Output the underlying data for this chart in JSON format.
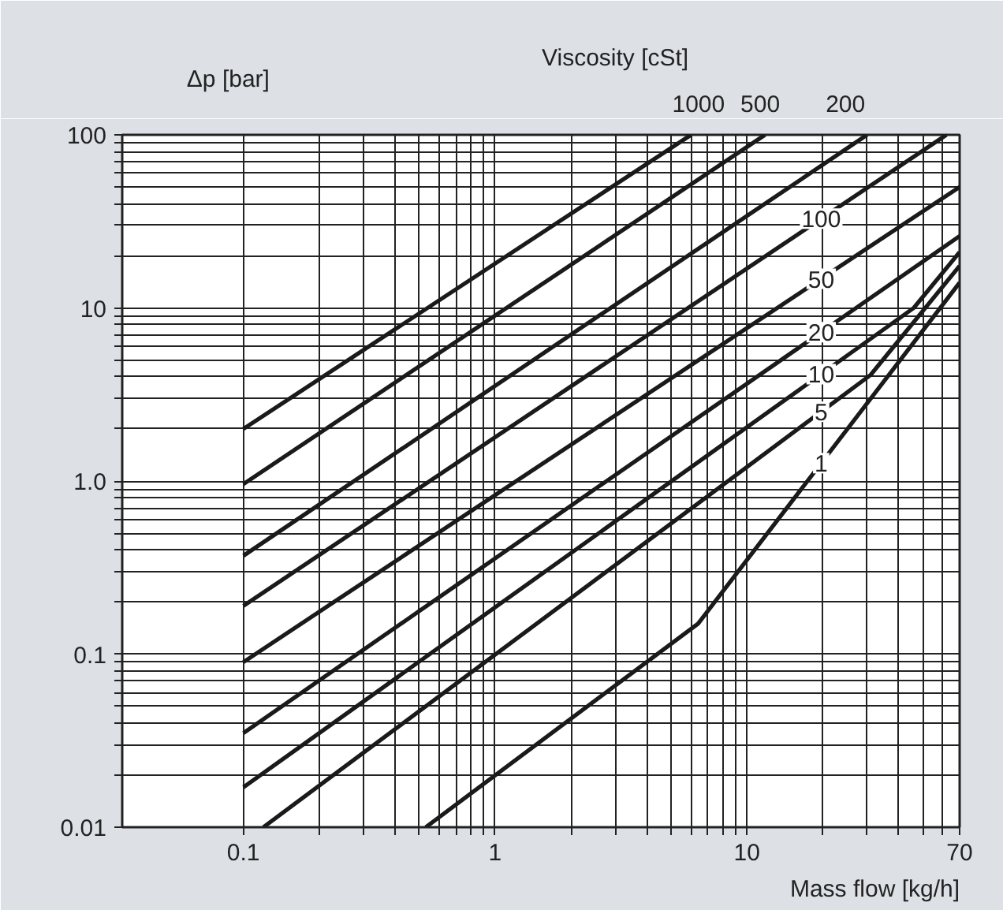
{
  "chart_data": {
    "type": "line",
    "legend_title": "Viscosity [cSt]",
    "xlabel": "Mass flow [kg/h]",
    "ylabel": "Δp [bar]",
    "log": "xy",
    "grid": true,
    "xlim": [
      0.033,
      70
    ],
    "ylim": [
      0.01,
      100
    ],
    "xticks": [
      0.1,
      {
        "value": 0.2,
        "label": null
      },
      {
        "value": 0.3,
        "label": null
      },
      {
        "value": 0.4,
        "label": null
      },
      {
        "value": 0.5,
        "label": null
      },
      {
        "value": 0.6,
        "label": null
      },
      {
        "value": 0.7,
        "label": null
      },
      {
        "value": 0.8,
        "label": null
      },
      {
        "value": 0.9,
        "label": null
      },
      1,
      {
        "value": 2,
        "label": null
      },
      {
        "value": 3,
        "label": null
      },
      {
        "value": 4,
        "label": null
      },
      {
        "value": 5,
        "label": null
      },
      {
        "value": 6,
        "label": null
      },
      {
        "value": 7,
        "label": null
      },
      {
        "value": 8,
        "label": null
      },
      {
        "value": 9,
        "label": null
      },
      10,
      {
        "value": 20,
        "label": null
      },
      {
        "value": 30,
        "label": null
      },
      {
        "value": 40,
        "label": null
      },
      {
        "value": 50,
        "label": null
      },
      {
        "value": 60,
        "label": null
      },
      70
    ],
    "yticks": [
      0.01,
      {
        "value": 0.02,
        "label": null
      },
      {
        "value": 0.03,
        "label": null
      },
      {
        "value": 0.04,
        "label": null
      },
      {
        "value": 0.05,
        "label": null
      },
      {
        "value": 0.06,
        "label": null
      },
      {
        "value": 0.07,
        "label": null
      },
      {
        "value": 0.08,
        "label": null
      },
      {
        "value": 0.09,
        "label": null
      },
      0.1,
      {
        "value": 0.2,
        "label": null
      },
      {
        "value": 0.3,
        "label": null
      },
      {
        "value": 0.4,
        "label": null
      },
      {
        "value": 0.5,
        "label": null
      },
      {
        "value": 0.6,
        "label": null
      },
      {
        "value": 0.7,
        "label": null
      },
      {
        "value": 0.8,
        "label": null
      },
      {
        "value": 0.9,
        "label": null
      },
      {
        "value": 1,
        "label": "1.0"
      },
      {
        "value": 2,
        "label": null
      },
      {
        "value": 3,
        "label": null
      },
      {
        "value": 4,
        "label": null
      },
      {
        "value": 5,
        "label": null
      },
      {
        "value": 6,
        "label": null
      },
      {
        "value": 7,
        "label": null
      },
      {
        "value": 8,
        "label": null
      },
      {
        "value": 9,
        "label": null
      },
      10,
      {
        "value": 20,
        "label": null
      },
      {
        "value": 30,
        "label": null
      },
      {
        "value": 40,
        "label": null
      },
      {
        "value": 50,
        "label": null
      },
      {
        "value": 60,
        "label": null
      },
      {
        "value": 70,
        "label": null
      },
      {
        "value": 80,
        "label": null
      },
      {
        "value": 90,
        "label": null
      },
      100
    ],
    "line_style": "solid",
    "marker": "none",
    "series": [
      {
        "name": "1000",
        "color": "#1a1a1a",
        "x": [
          0.1,
          6.0
        ],
        "values": [
          2.0,
          100
        ]
      },
      {
        "name": "500",
        "color": "#1a1a1a",
        "x": [
          0.1,
          11.8
        ],
        "values": [
          0.96,
          100
        ]
      },
      {
        "name": "200",
        "color": "#1a1a1a",
        "x": [
          0.1,
          30
        ],
        "values": [
          0.37,
          100
        ]
      },
      {
        "name": "100",
        "color": "#1a1a1a",
        "x": [
          0.1,
          62
        ],
        "values": [
          0.19,
          100
        ]
      },
      {
        "name": "50",
        "color": "#1a1a1a",
        "x": [
          0.1,
          70
        ],
        "values": [
          0.09,
          50
        ]
      },
      {
        "name": "20",
        "color": "#1a1a1a",
        "x": [
          0.1,
          70
        ],
        "values": [
          0.035,
          26
        ]
      },
      {
        "name": "10",
        "color": "#1a1a1a",
        "x": [
          0.1,
          46,
          70
        ],
        "values": [
          0.017,
          10,
          21
        ]
      },
      {
        "name": "5",
        "color": "#1a1a1a",
        "x": [
          0.12,
          31,
          70
        ],
        "values": [
          0.01,
          4.1,
          17.5
        ]
      },
      {
        "name": "1",
        "color": "#1a1a1a",
        "x": [
          0.53,
          6.4,
          70
        ],
        "values": [
          0.01,
          0.15,
          14
        ]
      }
    ]
  }
}
